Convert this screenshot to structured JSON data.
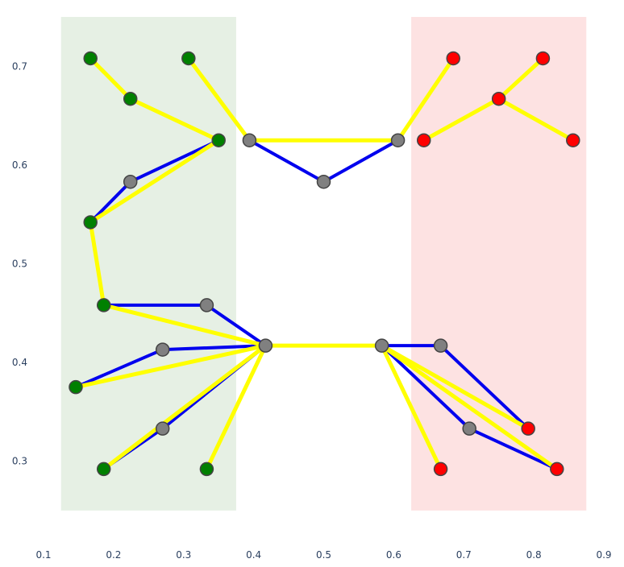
{
  "chart_data": {
    "type": "scatter",
    "title": "",
    "xlabel": "",
    "ylabel": "",
    "xlim": [
      0.1,
      0.9
    ],
    "ylim": [
      0.245,
      0.75
    ],
    "grid": false,
    "x_ticks": [
      0.1,
      0.2,
      0.3,
      0.4,
      0.5,
      0.6,
      0.7,
      0.8,
      0.9
    ],
    "y_ticks": [
      0.3,
      0.4,
      0.5,
      0.6,
      0.7
    ],
    "x_tick_labels": [
      "0.1",
      "0.2",
      "0.3",
      "0.4",
      "0.5",
      "0.6",
      "0.7",
      "0.8",
      "0.9"
    ],
    "y_tick_labels": [
      "0.3",
      "0.4",
      "0.5",
      "0.6",
      "0.7"
    ],
    "regions": [
      {
        "x0": 0.125,
        "x1": 0.375,
        "y0": 0.25,
        "y1": 0.75,
        "color": "#e6f0e4"
      },
      {
        "x0": 0.625,
        "x1": 0.875,
        "y0": 0.25,
        "y1": 0.75,
        "color": "#fde2e2"
      }
    ],
    "colors": {
      "green_node": "#008000",
      "red_node": "#ff0000",
      "gray_node": "#808080",
      "yellow_edge": "#ffff00",
      "blue_edge": "#0000ee",
      "node_outline": "#444444"
    },
    "nodes": [
      {
        "x": 0.167,
        "y": 0.708,
        "color": "green"
      },
      {
        "x": 0.307,
        "y": 0.708,
        "color": "green"
      },
      {
        "x": 0.224,
        "y": 0.667,
        "color": "green"
      },
      {
        "x": 0.35,
        "y": 0.625,
        "color": "green"
      },
      {
        "x": 0.394,
        "y": 0.625,
        "color": "gray"
      },
      {
        "x": 0.224,
        "y": 0.583,
        "color": "gray"
      },
      {
        "x": 0.167,
        "y": 0.542,
        "color": "green"
      },
      {
        "x": 0.186,
        "y": 0.458,
        "color": "green"
      },
      {
        "x": 0.333,
        "y": 0.458,
        "color": "gray"
      },
      {
        "x": 0.417,
        "y": 0.417,
        "color": "gray"
      },
      {
        "x": 0.27,
        "y": 0.413,
        "color": "gray"
      },
      {
        "x": 0.146,
        "y": 0.375,
        "color": "green"
      },
      {
        "x": 0.27,
        "y": 0.333,
        "color": "gray"
      },
      {
        "x": 0.186,
        "y": 0.292,
        "color": "green"
      },
      {
        "x": 0.333,
        "y": 0.292,
        "color": "green"
      },
      {
        "x": 0.5,
        "y": 0.583,
        "color": "gray"
      },
      {
        "x": 0.606,
        "y": 0.625,
        "color": "gray"
      },
      {
        "x": 0.643,
        "y": 0.625,
        "color": "red"
      },
      {
        "x": 0.685,
        "y": 0.708,
        "color": "red"
      },
      {
        "x": 0.813,
        "y": 0.708,
        "color": "red"
      },
      {
        "x": 0.75,
        "y": 0.667,
        "color": "red"
      },
      {
        "x": 0.856,
        "y": 0.625,
        "color": "red"
      },
      {
        "x": 0.583,
        "y": 0.417,
        "color": "gray"
      },
      {
        "x": 0.667,
        "y": 0.417,
        "color": "gray"
      },
      {
        "x": 0.708,
        "y": 0.333,
        "color": "gray"
      },
      {
        "x": 0.792,
        "y": 0.333,
        "color": "red"
      },
      {
        "x": 0.833,
        "y": 0.292,
        "color": "red"
      },
      {
        "x": 0.667,
        "y": 0.292,
        "color": "red"
      }
    ],
    "yellow_edges": [
      [
        0,
        2
      ],
      [
        2,
        3
      ],
      [
        1,
        4
      ],
      [
        4,
        16
      ],
      [
        3,
        6
      ],
      [
        6,
        7
      ],
      [
        7,
        9
      ],
      [
        9,
        22
      ],
      [
        9,
        11
      ],
      [
        9,
        13
      ],
      [
        9,
        14
      ],
      [
        16,
        18
      ],
      [
        17,
        20
      ],
      [
        20,
        19
      ],
      [
        20,
        21
      ],
      [
        22,
        25
      ],
      [
        22,
        26
      ],
      [
        22,
        27
      ]
    ],
    "blue_edges": [
      [
        4,
        15
      ],
      [
        15,
        16
      ],
      [
        3,
        5
      ],
      [
        5,
        6
      ],
      [
        7,
        8
      ],
      [
        8,
        9
      ],
      [
        9,
        10
      ],
      [
        10,
        11
      ],
      [
        9,
        12
      ],
      [
        12,
        13
      ],
      [
        22,
        23
      ],
      [
        23,
        25
      ],
      [
        22,
        24
      ],
      [
        24,
        26
      ]
    ]
  }
}
